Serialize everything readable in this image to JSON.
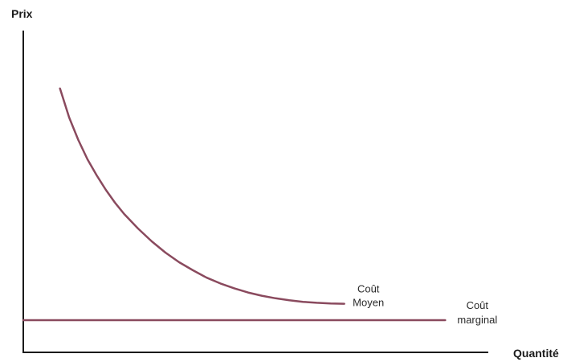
{
  "chart_data": {
    "type": "line",
    "title": "",
    "xlabel": "Quantité",
    "ylabel": "Prix",
    "xlim": [
      0,
      100
    ],
    "ylim": [
      0,
      100
    ],
    "grid": false,
    "legend": "none",
    "series": [
      {
        "name": "",
        "label_lines": [
          "Coût",
          "Moyen"
        ],
        "color": "#8a4a5e",
        "x": [
          8,
          10,
          12,
          14,
          16,
          18,
          20,
          22,
          25,
          28,
          31,
          34,
          37,
          40,
          43,
          46,
          49,
          52,
          55,
          58,
          61,
          64,
          67,
          70
        ],
        "y": [
          82,
          73,
          66,
          60,
          55,
          50.5,
          46.5,
          43,
          38.5,
          34.5,
          31,
          28,
          25.5,
          23.2,
          21.4,
          19.9,
          18.6,
          17.6,
          16.8,
          16.2,
          15.7,
          15.4,
          15.2,
          15.1
        ]
      },
      {
        "name": "",
        "label_lines": [
          "Coût",
          "marginal"
        ],
        "color": "#8a4a5e",
        "x": [
          0,
          92
        ],
        "y": [
          10,
          10
        ]
      }
    ]
  }
}
